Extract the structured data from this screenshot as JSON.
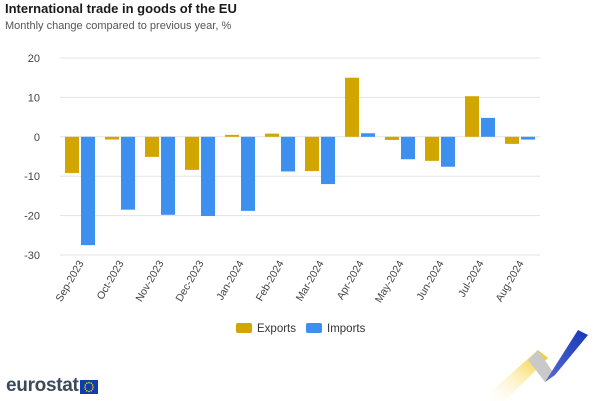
{
  "chart_data": {
    "type": "bar",
    "title": "International trade in goods of the EU",
    "subtitle": "Monthly change compared to previous year, %",
    "categories": [
      "Sep-2023",
      "Oct-2023",
      "Nov-2023",
      "Dec-2023",
      "Jan-2024",
      "Feb-2024",
      "Mar-2024",
      "Apr-2024",
      "May-2024",
      "Jun-2024",
      "Jul-2024",
      "Aug-2024"
    ],
    "series": [
      {
        "name": "Exports",
        "color": "#d1a600",
        "values": [
          -9.2,
          -0.7,
          -5.1,
          -8.4,
          0.5,
          0.8,
          -8.7,
          15.0,
          -0.8,
          -6.1,
          10.3,
          -1.8
        ]
      },
      {
        "name": "Imports",
        "color": "#3d8ff0",
        "values": [
          -27.5,
          -18.5,
          -19.8,
          -20.1,
          -18.8,
          -8.8,
          -12.0,
          0.9,
          -5.7,
          -7.6,
          4.8,
          -0.7
        ]
      }
    ],
    "ylim": [
      -30,
      20
    ],
    "yticks": [
      -30,
      -20,
      -10,
      0,
      10,
      20
    ],
    "xlabel": "",
    "ylabel": "",
    "grid": true,
    "legend": "bottom-center"
  },
  "footer": {
    "brand": "eurostat"
  }
}
